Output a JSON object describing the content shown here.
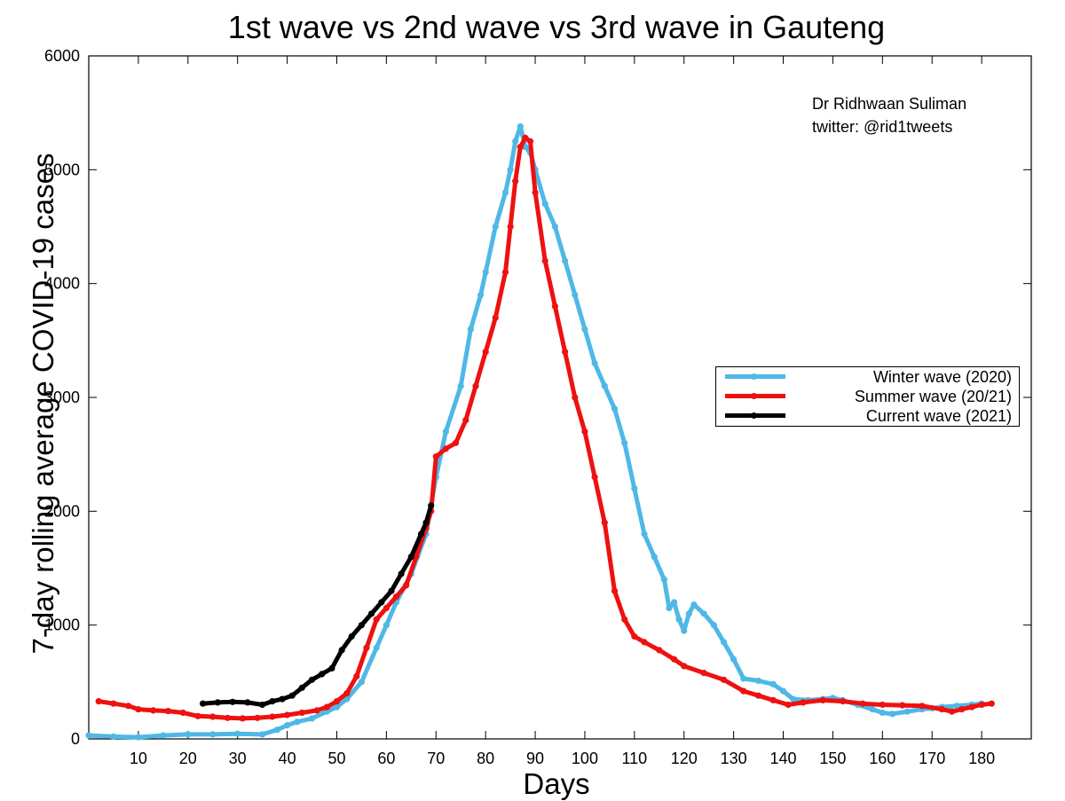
{
  "chart_data": {
    "type": "line",
    "title": "1st wave vs 2nd wave vs 3rd wave in Gauteng",
    "xlabel": "Days",
    "ylabel": "7-day rolling average COVID-19 cases",
    "xlim": [
      0,
      190
    ],
    "ylim": [
      0,
      6000
    ],
    "xticks": [
      10,
      20,
      30,
      40,
      50,
      60,
      70,
      80,
      90,
      100,
      110,
      120,
      130,
      140,
      150,
      160,
      170,
      180
    ],
    "yticks": [
      0,
      1000,
      2000,
      3000,
      4000,
      5000,
      6000
    ],
    "grid": false,
    "legend_position": "right",
    "annotation": [
      "Dr Ridhwaan Suliman",
      "twitter: @rid1tweets"
    ],
    "series": [
      {
        "name": "Winter wave (2020)",
        "color": "#4fb8e6",
        "points": [
          [
            0,
            30
          ],
          [
            5,
            20
          ],
          [
            10,
            15
          ],
          [
            15,
            30
          ],
          [
            20,
            40
          ],
          [
            25,
            40
          ],
          [
            30,
            45
          ],
          [
            35,
            40
          ],
          [
            38,
            80
          ],
          [
            40,
            120
          ],
          [
            42,
            150
          ],
          [
            45,
            180
          ],
          [
            48,
            240
          ],
          [
            50,
            280
          ],
          [
            52,
            350
          ],
          [
            55,
            500
          ],
          [
            58,
            800
          ],
          [
            60,
            1000
          ],
          [
            62,
            1200
          ],
          [
            65,
            1450
          ],
          [
            68,
            1800
          ],
          [
            70,
            2300
          ],
          [
            72,
            2700
          ],
          [
            75,
            3100
          ],
          [
            77,
            3600
          ],
          [
            79,
            3900
          ],
          [
            80,
            4100
          ],
          [
            82,
            4500
          ],
          [
            84,
            4800
          ],
          [
            85,
            5000
          ],
          [
            86,
            5250
          ],
          [
            87,
            5380
          ],
          [
            88,
            5200
          ],
          [
            89,
            5150
          ],
          [
            90,
            5000
          ],
          [
            92,
            4700
          ],
          [
            94,
            4500
          ],
          [
            96,
            4200
          ],
          [
            98,
            3900
          ],
          [
            100,
            3600
          ],
          [
            102,
            3300
          ],
          [
            104,
            3100
          ],
          [
            106,
            2900
          ],
          [
            108,
            2600
          ],
          [
            110,
            2200
          ],
          [
            112,
            1800
          ],
          [
            114,
            1600
          ],
          [
            116,
            1400
          ],
          [
            117,
            1150
          ],
          [
            118,
            1200
          ],
          [
            119,
            1050
          ],
          [
            120,
            950
          ],
          [
            121,
            1100
          ],
          [
            122,
            1180
          ],
          [
            124,
            1100
          ],
          [
            126,
            1000
          ],
          [
            128,
            850
          ],
          [
            130,
            700
          ],
          [
            132,
            530
          ],
          [
            135,
            510
          ],
          [
            138,
            480
          ],
          [
            140,
            420
          ],
          [
            142,
            350
          ],
          [
            145,
            340
          ],
          [
            148,
            350
          ],
          [
            150,
            360
          ],
          [
            152,
            340
          ],
          [
            155,
            300
          ],
          [
            158,
            260
          ],
          [
            160,
            230
          ],
          [
            162,
            220
          ],
          [
            165,
            240
          ],
          [
            168,
            260
          ],
          [
            170,
            270
          ],
          [
            172,
            280
          ],
          [
            175,
            290
          ],
          [
            178,
            300
          ],
          [
            180,
            310
          ]
        ]
      },
      {
        "name": "Summer wave (20/21)",
        "color": "#ee1111",
        "points": [
          [
            2,
            330
          ],
          [
            5,
            310
          ],
          [
            8,
            290
          ],
          [
            10,
            260
          ],
          [
            13,
            250
          ],
          [
            16,
            245
          ],
          [
            19,
            230
          ],
          [
            22,
            200
          ],
          [
            25,
            195
          ],
          [
            28,
            185
          ],
          [
            31,
            180
          ],
          [
            34,
            185
          ],
          [
            37,
            195
          ],
          [
            40,
            210
          ],
          [
            43,
            230
          ],
          [
            46,
            250
          ],
          [
            48,
            280
          ],
          [
            50,
            330
          ],
          [
            52,
            400
          ],
          [
            54,
            550
          ],
          [
            56,
            800
          ],
          [
            58,
            1050
          ],
          [
            60,
            1150
          ],
          [
            62,
            1250
          ],
          [
            64,
            1350
          ],
          [
            66,
            1600
          ],
          [
            68,
            1850
          ],
          [
            69,
            2000
          ],
          [
            70,
            2480
          ],
          [
            72,
            2550
          ],
          [
            74,
            2600
          ],
          [
            76,
            2800
          ],
          [
            78,
            3100
          ],
          [
            80,
            3400
          ],
          [
            82,
            3700
          ],
          [
            84,
            4100
          ],
          [
            85,
            4500
          ],
          [
            86,
            4900
          ],
          [
            87,
            5200
          ],
          [
            88,
            5280
          ],
          [
            89,
            5250
          ],
          [
            90,
            4800
          ],
          [
            92,
            4200
          ],
          [
            94,
            3800
          ],
          [
            96,
            3400
          ],
          [
            98,
            3000
          ],
          [
            100,
            2700
          ],
          [
            102,
            2300
          ],
          [
            104,
            1900
          ],
          [
            106,
            1300
          ],
          [
            108,
            1050
          ],
          [
            110,
            900
          ],
          [
            112,
            850
          ],
          [
            115,
            780
          ],
          [
            118,
            700
          ],
          [
            120,
            640
          ],
          [
            124,
            580
          ],
          [
            128,
            520
          ],
          [
            132,
            420
          ],
          [
            135,
            380
          ],
          [
            138,
            340
          ],
          [
            141,
            300
          ],
          [
            144,
            320
          ],
          [
            148,
            340
          ],
          [
            152,
            330
          ],
          [
            156,
            310
          ],
          [
            160,
            300
          ],
          [
            164,
            295
          ],
          [
            168,
            290
          ],
          [
            172,
            260
          ],
          [
            174,
            240
          ],
          [
            176,
            260
          ],
          [
            178,
            280
          ],
          [
            180,
            300
          ],
          [
            182,
            310
          ]
        ]
      },
      {
        "name": "Current wave (2021)",
        "color": "#000000",
        "points": [
          [
            23,
            310
          ],
          [
            26,
            320
          ],
          [
            29,
            325
          ],
          [
            32,
            320
          ],
          [
            35,
            300
          ],
          [
            37,
            330
          ],
          [
            39,
            350
          ],
          [
            41,
            380
          ],
          [
            43,
            450
          ],
          [
            45,
            520
          ],
          [
            47,
            570
          ],
          [
            49,
            620
          ],
          [
            51,
            780
          ],
          [
            53,
            900
          ],
          [
            55,
            1000
          ],
          [
            57,
            1100
          ],
          [
            59,
            1200
          ],
          [
            61,
            1300
          ],
          [
            63,
            1450
          ],
          [
            65,
            1600
          ],
          [
            67,
            1800
          ],
          [
            68,
            1900
          ],
          [
            69,
            2050
          ]
        ]
      }
    ]
  }
}
